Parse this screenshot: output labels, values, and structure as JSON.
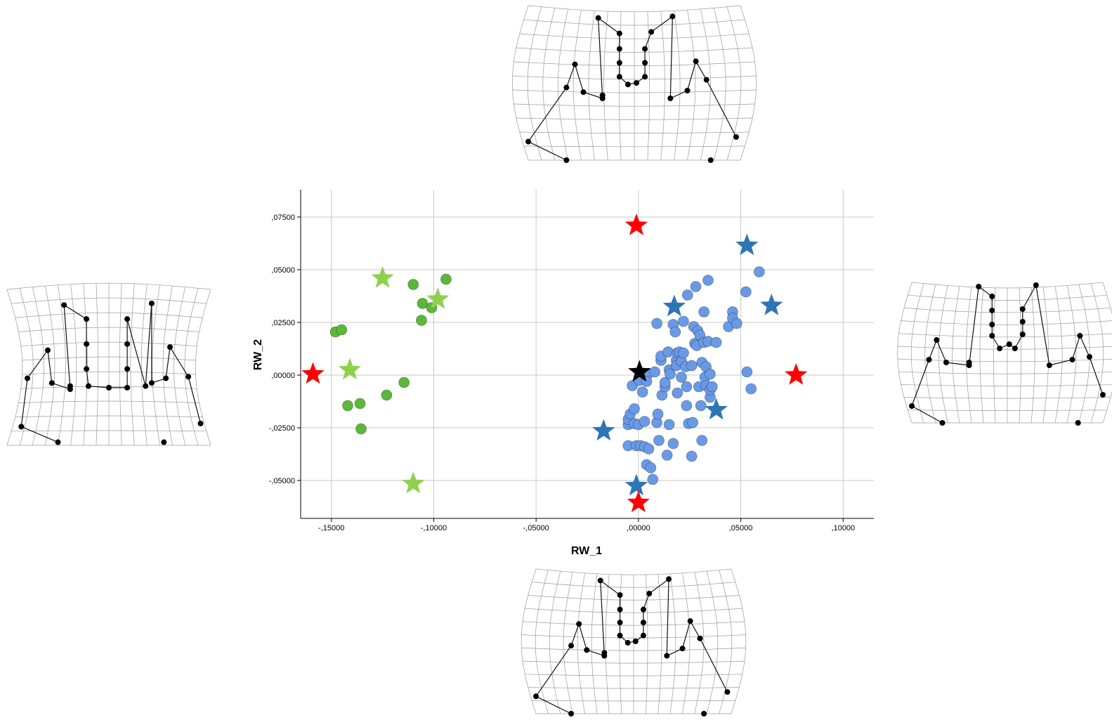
{
  "chart_data": {
    "type": "scatter",
    "xlabel": "RW_1",
    "ylabel": "RW_2",
    "xlim": [
      -0.165,
      0.115
    ],
    "ylim": [
      -0.068,
      0.088
    ],
    "x_ticks": [
      -0.15,
      -0.1,
      -0.05,
      0.0,
      0.05,
      0.1
    ],
    "x_tick_labels": [
      ",15000",
      ",10000",
      ",05000",
      ",00000",
      ",05000",
      ",10000"
    ],
    "x_tick_signs": [
      "-",
      "-",
      "-",
      "",
      "",
      ""
    ],
    "y_ticks": [
      -0.05,
      -0.025,
      0.0,
      0.025,
      0.05,
      0.075
    ],
    "y_tick_labels": [
      ",05000",
      ",02500",
      ",00000",
      ",02500",
      ",05000",
      ",07500"
    ],
    "y_tick_signs": [
      "-",
      "-",
      "",
      "",
      "",
      ""
    ],
    "grid": true,
    "colors": {
      "green_points": "#5cb83b",
      "blue_points": "#6a9ae6",
      "light_green_stars": "#8fd14f",
      "dark_blue_stars": "#2e75b6",
      "red_stars": "#ff0000",
      "black_star": "#000000"
    },
    "series": [
      {
        "marker": "circle",
        "color_key": "green_points",
        "points": [
          [
            -0.148,
            0.0205
          ],
          [
            -0.145,
            0.0215
          ],
          [
            -0.142,
            -0.0145
          ],
          [
            -0.136,
            -0.0135
          ],
          [
            -0.1355,
            -0.0255
          ],
          [
            -0.123,
            -0.0095
          ],
          [
            -0.1145,
            -0.0035
          ],
          [
            -0.11,
            0.043
          ],
          [
            -0.106,
            0.026
          ],
          [
            -0.1055,
            0.034
          ],
          [
            -0.101,
            0.032
          ],
          [
            -0.094,
            0.0455
          ]
        ]
      },
      {
        "marker": "circle",
        "color_key": "blue_points",
        "points": [
          [
            -0.005,
            -0.0335
          ],
          [
            -0.005,
            -0.0235
          ],
          [
            -0.005,
            -0.021
          ],
          [
            -0.004,
            -0.0185
          ],
          [
            -0.003,
            -0.005
          ],
          [
            -0.002,
            -0.016
          ],
          [
            -0.002,
            -0.023
          ],
          [
            -0.001,
            -0.0335
          ],
          [
            0.0,
            -0.0235
          ],
          [
            0.0005,
            -0.0025
          ],
          [
            0.001,
            -0.0335
          ],
          [
            0.002,
            -0.008
          ],
          [
            0.003,
            -0.034
          ],
          [
            0.003,
            -0.022
          ],
          [
            0.004,
            -0.0425
          ],
          [
            0.0045,
            0.0005
          ],
          [
            0.004,
            -0.003
          ],
          [
            0.005,
            -0.035
          ],
          [
            0.006,
            -0.044
          ],
          [
            0.007,
            -0.0495
          ],
          [
            0.008,
            0.0015
          ],
          [
            0.009,
            0.0245
          ],
          [
            0.009,
            -0.0225
          ],
          [
            0.0095,
            -0.0185
          ],
          [
            0.01,
            -0.031
          ],
          [
            0.011,
            0.007
          ],
          [
            0.011,
            0.009
          ],
          [
            0.0115,
            -0.0095
          ],
          [
            0.013,
            -0.0055
          ],
          [
            0.013,
            -0.0035
          ],
          [
            0.014,
            -0.038
          ],
          [
            0.0145,
            0.011
          ],
          [
            0.015,
            0.0025
          ],
          [
            0.015,
            -0.0235
          ],
          [
            0.0155,
            0.0005
          ],
          [
            0.017,
            -0.0325
          ],
          [
            0.017,
            0.024
          ],
          [
            0.018,
            0.0205
          ],
          [
            0.0185,
            0.007
          ],
          [
            0.0185,
            0.0045
          ],
          [
            0.019,
            0.0105
          ],
          [
            0.019,
            -0.0085
          ],
          [
            0.02,
            0.011
          ],
          [
            0.021,
            0.0065
          ],
          [
            0.021,
            -0.001
          ],
          [
            0.022,
            0.0105
          ],
          [
            0.022,
            0.0255
          ],
          [
            0.023,
            0.004
          ],
          [
            0.0235,
            -0.0055
          ],
          [
            0.0235,
            -0.0145
          ],
          [
            0.024,
            0.038
          ],
          [
            0.0245,
            -0.023
          ],
          [
            0.026,
            0.0045
          ],
          [
            0.026,
            -0.0385
          ],
          [
            0.0265,
            -0.0225
          ],
          [
            0.027,
            0.023
          ],
          [
            0.0275,
            0.015
          ],
          [
            0.028,
            0.042
          ],
          [
            0.0285,
            0.014
          ],
          [
            0.029,
            0.021
          ],
          [
            0.0295,
            -0.0055
          ],
          [
            0.03,
            0.019
          ],
          [
            0.0305,
            -0.0145
          ],
          [
            0.031,
            -0.031
          ],
          [
            0.031,
            0.006
          ],
          [
            0.032,
            0.03
          ],
          [
            0.032,
            0.0155
          ],
          [
            0.0325,
            -0.001
          ],
          [
            0.033,
            -0.005
          ],
          [
            0.033,
            0.004
          ],
          [
            0.034,
            0.045
          ],
          [
            0.034,
            0.016
          ],
          [
            0.035,
            -0.0105
          ],
          [
            0.035,
            0.0005
          ],
          [
            0.035,
            -0.007
          ],
          [
            0.036,
            -0.0055
          ],
          [
            0.038,
            0.0155
          ],
          [
            0.044,
            0.023
          ],
          [
            0.046,
            0.03
          ],
          [
            0.046,
            0.027
          ],
          [
            0.048,
            0.0245
          ],
          [
            0.0525,
            0.0395
          ],
          [
            0.053,
            0.0015
          ],
          [
            0.055,
            -0.0065
          ],
          [
            0.059,
            0.049
          ]
        ]
      },
      {
        "marker": "star",
        "color_key": "light_green_stars",
        "points": [
          [
            -0.125,
            0.046
          ],
          [
            -0.141,
            0.0025
          ],
          [
            -0.098,
            0.036
          ],
          [
            -0.11,
            -0.0515
          ]
        ]
      },
      {
        "marker": "star",
        "color_key": "dark_blue_stars",
        "points": [
          [
            0.053,
            0.0615
          ],
          [
            0.065,
            0.033
          ],
          [
            0.0175,
            0.0325
          ],
          [
            0.038,
            -0.0165
          ],
          [
            -0.017,
            -0.0265
          ],
          [
            -0.001,
            -0.0525
          ]
        ]
      },
      {
        "marker": "star",
        "color_key": "red_stars",
        "points": [
          [
            -0.159,
            0.0005
          ],
          [
            -0.001,
            0.071
          ],
          [
            0.077,
            0.0
          ],
          [
            0.0,
            -0.0605
          ]
        ]
      },
      {
        "marker": "star",
        "color_key": "black_star",
        "points": [
          [
            0.0005,
            0.0015
          ]
        ]
      }
    ]
  },
  "deformation_grids": [
    {
      "position": "top",
      "icon": "landmark-deformation-grid"
    },
    {
      "position": "left",
      "icon": "landmark-deformation-grid"
    },
    {
      "position": "right",
      "icon": "landmark-deformation-grid"
    },
    {
      "position": "bottom",
      "icon": "landmark-deformation-grid"
    }
  ]
}
